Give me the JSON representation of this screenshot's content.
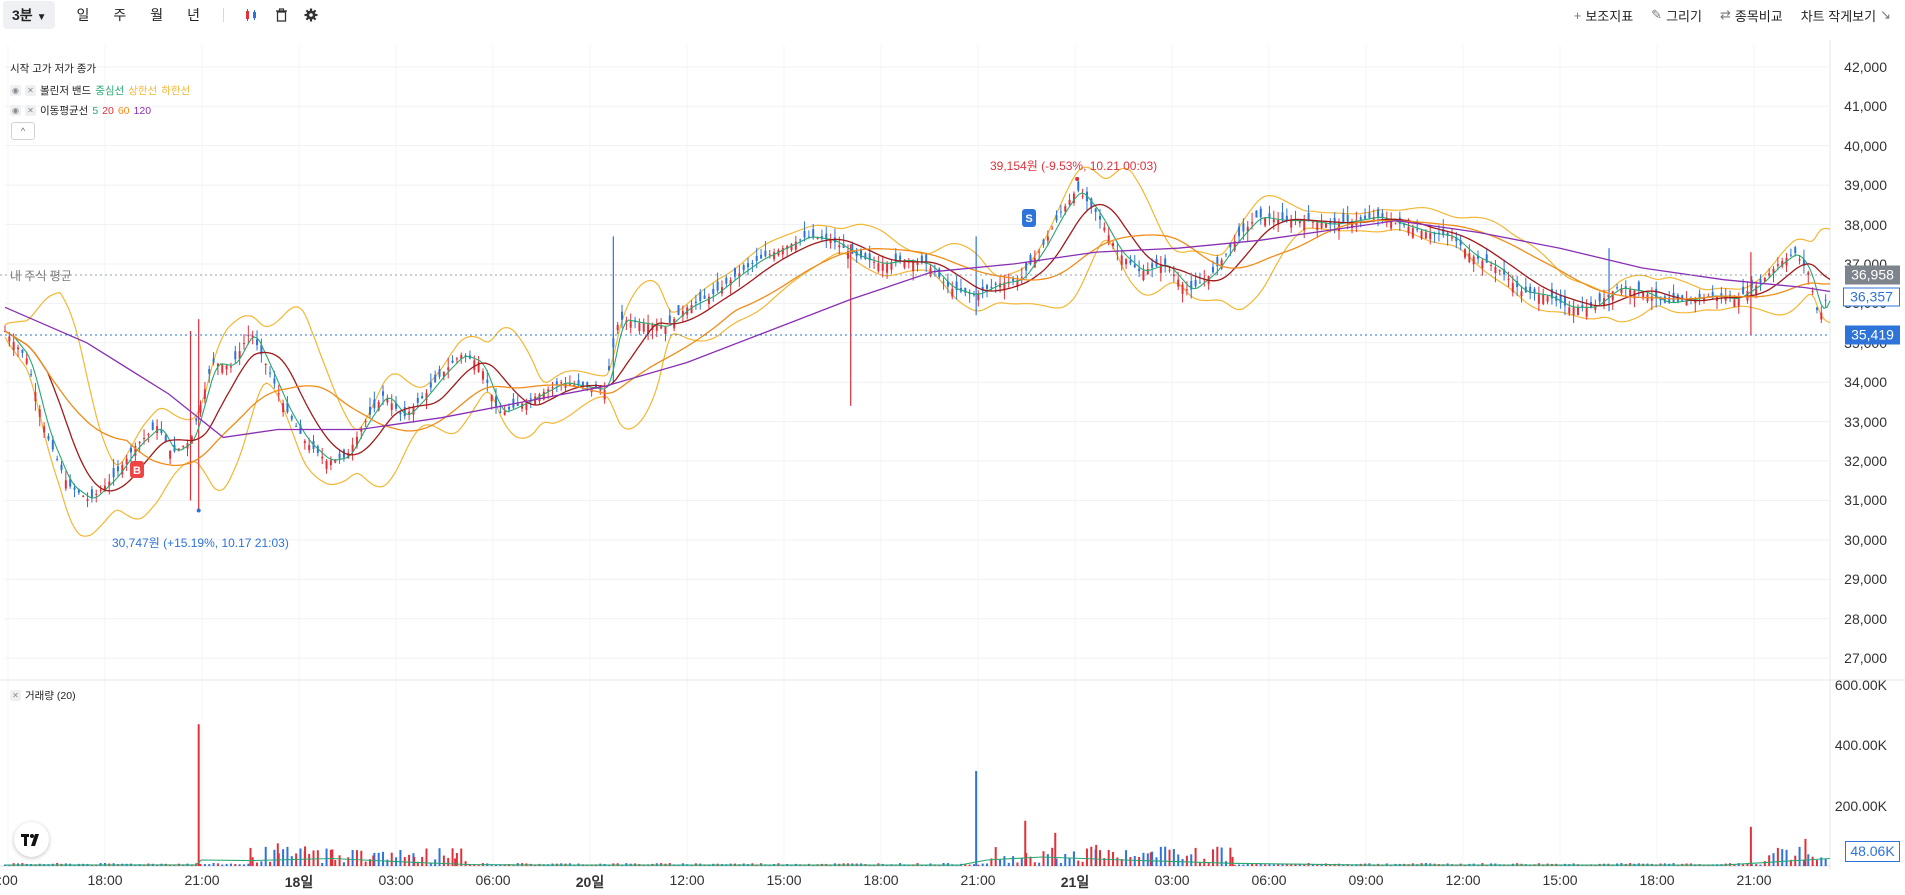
{
  "toolbar": {
    "timeframe_active": "3분",
    "timeframes": [
      "일",
      "주",
      "월",
      "년"
    ],
    "icons": [
      "candle-style-icon",
      "trash-icon",
      "gear-icon"
    ],
    "right_buttons": [
      {
        "label": "보조지표",
        "icon": "plus-icon"
      },
      {
        "label": "그리기",
        "icon": "pencil-icon"
      },
      {
        "label": "종목비교",
        "icon": "compare-arrows-icon"
      },
      {
        "label": "차트 작게보기",
        "icon": "shrink-icon"
      }
    ]
  },
  "legend": {
    "ohlc_header": "시작 고가 저가 종가",
    "bollinger": {
      "name": "볼린저 밴드",
      "mid": "중심선",
      "upper": "상한선",
      "lower": "하한선"
    },
    "ma": {
      "name": "이동평균선",
      "periods": [
        "5",
        "20",
        "60",
        "120"
      ]
    },
    "collapse": "^"
  },
  "volume_label": "거래량 (20)",
  "my_avg_label": "내 주식 평균",
  "annotations": {
    "high": "39,154원 (-9.53%, 10.21 00:03)",
    "low": "30,747원 (+15.19%, 10.17 21:03)",
    "buy_marker": "B",
    "sell_marker": "S"
  },
  "price_tags": {
    "my_avg": "36,958",
    "current": "36,357",
    "other": "35,419"
  },
  "volume_tag": "48.06K",
  "colors": {
    "up": "#e0313b",
    "down": "#2d73d9",
    "ma5": "#27a86f",
    "ma20": "#a11a1a",
    "ma60": "#f08c1a",
    "ma120": "#8a2fb5",
    "bb_upper": "#f4b735",
    "bb_mid": "#27a86f",
    "vol_ma": "#27a86f"
  },
  "chart_data": {
    "type": "line",
    "title": "",
    "y_axis": {
      "labels": [
        "42,000",
        "41,000",
        "40,000",
        "39,000",
        "38,000",
        "37,000",
        "36,000",
        "35,000",
        "34,000",
        "33,000",
        "32,000",
        "31,000",
        "30,000",
        "29,000",
        "28,000",
        "27,000"
      ],
      "ylim": [
        26700,
        42300
      ]
    },
    "volume_axis": {
      "labels": [
        "600.00K",
        "400.00K",
        "200.00K"
      ],
      "ylim": [
        0,
        600000
      ]
    },
    "x_axis": {
      "labels": [
        ":00",
        "18:00",
        "21:00",
        "18일",
        "03:00",
        "06:00",
        "20일",
        "12:00",
        "15:00",
        "18:00",
        "21:00",
        "21일",
        "03:00",
        "06:00",
        "09:00",
        "12:00",
        "15:00",
        "18:00",
        "21:00"
      ],
      "bold": [
        "18일",
        "20일",
        "21일"
      ]
    },
    "reference_lines": {
      "my_avg": 36958,
      "other": 35419
    },
    "close_series": [
      {
        "t": 0,
        "v": 35300
      },
      {
        "t": 0.8,
        "v": 34600
      },
      {
        "t": 1.5,
        "v": 32700
      },
      {
        "t": 2.3,
        "v": 31400
      },
      {
        "t": 3.1,
        "v": 31000
      },
      {
        "t": 4.0,
        "v": 31600
      },
      {
        "t": 4.8,
        "v": 32400
      },
      {
        "t": 5.6,
        "v": 32900
      },
      {
        "t": 6.1,
        "v": 32200
      },
      {
        "t": 6.8,
        "v": 32500
      },
      {
        "t": 7.6,
        "v": 34500
      },
      {
        "t": 8.3,
        "v": 34400
      },
      {
        "t": 9.0,
        "v": 35300
      },
      {
        "t": 9.6,
        "v": 34400
      },
      {
        "t": 10.3,
        "v": 33300
      },
      {
        "t": 11.0,
        "v": 32500
      },
      {
        "t": 11.8,
        "v": 32000
      },
      {
        "t": 12.5,
        "v": 32100
      },
      {
        "t": 13.2,
        "v": 33000
      },
      {
        "t": 13.9,
        "v": 33700
      },
      {
        "t": 14.6,
        "v": 33100
      },
      {
        "t": 15.3,
        "v": 33600
      },
      {
        "t": 16.0,
        "v": 34200
      },
      {
        "t": 16.7,
        "v": 34700
      },
      {
        "t": 17.4,
        "v": 34500
      },
      {
        "t": 18.1,
        "v": 33200
      },
      {
        "t": 18.8,
        "v": 33400
      },
      {
        "t": 19.6,
        "v": 33700
      },
      {
        "t": 20.4,
        "v": 34000
      },
      {
        "t": 21.1,
        "v": 33900
      },
      {
        "t": 22.0,
        "v": 33800
      },
      {
        "t": 22.5,
        "v": 35600
      },
      {
        "t": 23.3,
        "v": 35500
      },
      {
        "t": 24.2,
        "v": 35400
      },
      {
        "t": 25.0,
        "v": 35900
      },
      {
        "t": 25.9,
        "v": 36200
      },
      {
        "t": 26.8,
        "v": 36700
      },
      {
        "t": 27.6,
        "v": 37100
      },
      {
        "t": 28.5,
        "v": 37400
      },
      {
        "t": 29.4,
        "v": 37700
      },
      {
        "t": 30.3,
        "v": 37600
      },
      {
        "t": 31.2,
        "v": 37200
      },
      {
        "t": 32.1,
        "v": 37000
      },
      {
        "t": 33.0,
        "v": 37100
      },
      {
        "t": 33.8,
        "v": 37000
      },
      {
        "t": 34.6,
        "v": 36400
      },
      {
        "t": 35.5,
        "v": 36200
      },
      {
        "t": 36.4,
        "v": 36500
      },
      {
        "t": 37.2,
        "v": 36600
      },
      {
        "t": 38.0,
        "v": 37400
      },
      {
        "t": 38.7,
        "v": 38300
      },
      {
        "t": 39.3,
        "v": 38900
      },
      {
        "t": 40.0,
        "v": 38300
      },
      {
        "t": 40.8,
        "v": 37300
      },
      {
        "t": 41.6,
        "v": 36800
      },
      {
        "t": 42.5,
        "v": 37000
      },
      {
        "t": 43.4,
        "v": 36300
      },
      {
        "t": 44.3,
        "v": 36800
      },
      {
        "t": 45.1,
        "v": 37600
      },
      {
        "t": 45.9,
        "v": 38200
      },
      {
        "t": 46.8,
        "v": 38100
      },
      {
        "t": 47.7,
        "v": 38100
      },
      {
        "t": 48.6,
        "v": 38000
      },
      {
        "t": 49.5,
        "v": 38100
      },
      {
        "t": 50.3,
        "v": 38200
      },
      {
        "t": 51.2,
        "v": 38000
      },
      {
        "t": 52.1,
        "v": 37800
      },
      {
        "t": 53.0,
        "v": 37700
      },
      {
        "t": 53.8,
        "v": 37200
      },
      {
        "t": 54.7,
        "v": 36900
      },
      {
        "t": 55.6,
        "v": 36300
      },
      {
        "t": 56.5,
        "v": 36200
      },
      {
        "t": 57.3,
        "v": 35900
      },
      {
        "t": 58.2,
        "v": 35900
      },
      {
        "t": 59.1,
        "v": 36400
      },
      {
        "t": 60.0,
        "v": 36300
      },
      {
        "t": 60.9,
        "v": 36000
      },
      {
        "t": 61.8,
        "v": 36100
      },
      {
        "t": 62.6,
        "v": 36200
      },
      {
        "t": 63.4,
        "v": 36100
      },
      {
        "t": 64.3,
        "v": 36500
      },
      {
        "t": 65.0,
        "v": 37000
      },
      {
        "t": 65.6,
        "v": 37300
      },
      {
        "t": 66.1,
        "v": 36800
      },
      {
        "t": 66.5,
        "v": 35600
      },
      {
        "t": 66.9,
        "v": 36400
      }
    ],
    "ma120_series": [
      {
        "t": 0,
        "v": 35900
      },
      {
        "t": 3,
        "v": 35000
      },
      {
        "t": 6,
        "v": 33700
      },
      {
        "t": 8,
        "v": 32600
      },
      {
        "t": 10,
        "v": 32800
      },
      {
        "t": 13,
        "v": 32800
      },
      {
        "t": 16,
        "v": 33100
      },
      {
        "t": 19,
        "v": 33500
      },
      {
        "t": 22,
        "v": 33900
      },
      {
        "t": 25,
        "v": 34500
      },
      {
        "t": 28,
        "v": 35300
      },
      {
        "t": 31,
        "v": 36100
      },
      {
        "t": 34,
        "v": 36800
      },
      {
        "t": 37,
        "v": 37000
      },
      {
        "t": 40,
        "v": 37300
      },
      {
        "t": 43,
        "v": 37400
      },
      {
        "t": 46,
        "v": 37600
      },
      {
        "t": 49,
        "v": 37900
      },
      {
        "t": 51,
        "v": 38100
      },
      {
        "t": 54,
        "v": 37800
      },
      {
        "t": 57,
        "v": 37400
      },
      {
        "t": 60,
        "v": 36900
      },
      {
        "t": 63,
        "v": 36600
      },
      {
        "t": 66,
        "v": 36400
      },
      {
        "t": 66.9,
        "v": 36300
      }
    ],
    "high_point": {
      "t": 39.3,
      "v": 39154
    },
    "low_point": {
      "t": 7.1,
      "v": 30747
    },
    "volume_series": [
      {
        "t": 7.1,
        "v": 470000
      },
      {
        "t": 9.0,
        "v": 60000
      },
      {
        "t": 10.0,
        "v": 75000
      },
      {
        "t": 11.0,
        "v": 65000
      },
      {
        "t": 12.0,
        "v": 55000
      },
      {
        "t": 13.5,
        "v": 35000
      },
      {
        "t": 15.0,
        "v": 30000
      },
      {
        "t": 16.5,
        "v": 25000
      },
      {
        "t": 35.6,
        "v": 315000
      },
      {
        "t": 37.4,
        "v": 150000
      },
      {
        "t": 38.5,
        "v": 110000
      },
      {
        "t": 40.0,
        "v": 70000
      },
      {
        "t": 42.0,
        "v": 45000
      },
      {
        "t": 45.0,
        "v": 30000
      },
      {
        "t": 64.0,
        "v": 130000
      },
      {
        "t": 66.0,
        "v": 90000
      }
    ]
  }
}
